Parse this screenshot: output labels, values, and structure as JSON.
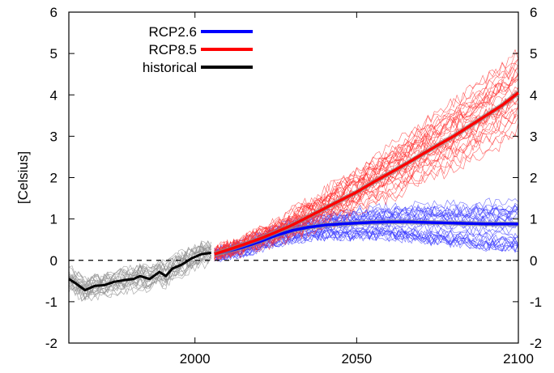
{
  "chart_data": {
    "type": "line",
    "title": "",
    "xlabel": "",
    "ylabel": "[Celsius]",
    "xlim": [
      1961,
      2100
    ],
    "ylim": [
      -2,
      6
    ],
    "x_ticks": [
      2000,
      2050,
      2100
    ],
    "y_ticks": [
      -2,
      -1,
      0,
      1,
      2,
      3,
      4,
      5,
      6
    ],
    "right_axis_ticks": [
      -2,
      -1,
      0,
      1,
      2,
      3,
      4,
      5,
      6
    ],
    "reference_line": {
      "y": 0,
      "style": "dashed"
    },
    "legend": {
      "placement": "top-left"
    },
    "series": [
      {
        "name": "RCP2.6",
        "color": "#0000ff",
        "x": [
          2006,
          2010,
          2015,
          2020,
          2025,
          2030,
          2035,
          2040,
          2045,
          2050,
          2055,
          2060,
          2065,
          2070,
          2075,
          2080,
          2085,
          2090,
          2095,
          2100
        ],
        "values": [
          0.15,
          0.22,
          0.32,
          0.45,
          0.6,
          0.72,
          0.8,
          0.85,
          0.88,
          0.9,
          0.92,
          0.93,
          0.93,
          0.92,
          0.91,
          0.9,
          0.89,
          0.88,
          0.88,
          0.88
        ]
      },
      {
        "name": "RCP8.5",
        "color": "#ff0000",
        "x": [
          2006,
          2010,
          2015,
          2020,
          2025,
          2030,
          2035,
          2040,
          2045,
          2050,
          2055,
          2060,
          2065,
          2070,
          2075,
          2080,
          2085,
          2090,
          2095,
          2100
        ],
        "values": [
          0.15,
          0.25,
          0.38,
          0.52,
          0.68,
          0.85,
          1.05,
          1.25,
          1.45,
          1.65,
          1.88,
          2.1,
          2.32,
          2.55,
          2.78,
          3.0,
          3.25,
          3.5,
          3.75,
          4.05
        ]
      },
      {
        "name": "historical",
        "color": "#000000",
        "x": [
          1961,
          1963,
          1966,
          1969,
          1972,
          1975,
          1978,
          1981,
          1983,
          1986,
          1989,
          1991,
          1993,
          1996,
          1999,
          2002,
          2005
        ],
        "values": [
          -0.45,
          -0.55,
          -0.72,
          -0.62,
          -0.6,
          -0.52,
          -0.48,
          -0.45,
          -0.38,
          -0.45,
          -0.28,
          -0.38,
          -0.2,
          -0.1,
          0.05,
          0.15,
          0.18
        ]
      }
    ]
  }
}
